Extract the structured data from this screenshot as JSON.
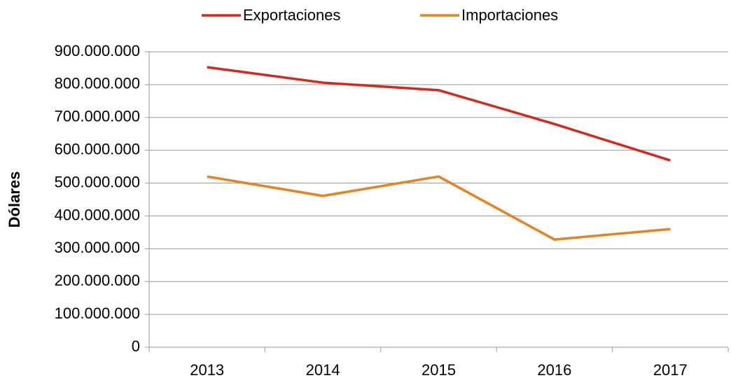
{
  "chart_data": {
    "type": "line",
    "y_label": "Dólares",
    "categories": [
      "2013",
      "2014",
      "2015",
      "2016",
      "2017"
    ],
    "series": [
      {
        "name": "Exportaciones",
        "color": "#d9261c",
        "values": [
          853000000,
          806000000,
          783000000,
          680000000,
          569000000
        ]
      },
      {
        "name": "Importaciones",
        "color": "#e8821e",
        "values": [
          520000000,
          461000000,
          520000000,
          328000000,
          360000000
        ]
      }
    ],
    "ylim": [
      0,
      900000000
    ],
    "yticks": [
      0,
      {
        "value": 100000000,
        "label": "100.000.000"
      },
      {
        "value": 200000000,
        "label": "200.000.000"
      },
      {
        "value": 300000000,
        "label": "300.000.000"
      },
      {
        "value": 400000000,
        "label": "400.000.000"
      },
      {
        "value": 500000000,
        "label": "500.000.000"
      },
      {
        "value": 600000000,
        "label": "600.000.000"
      },
      {
        "value": 700000000,
        "label": "700.000.000"
      },
      {
        "value": 800000000,
        "label": "800.000.000"
      },
      {
        "value": 900000000,
        "label": "900.000.000"
      }
    ],
    "grid": true,
    "legend": "top"
  }
}
